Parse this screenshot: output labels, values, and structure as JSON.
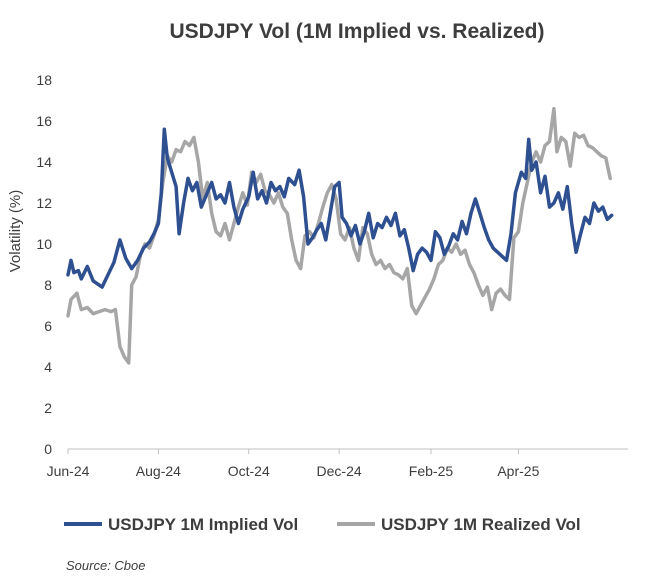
{
  "chart_data": {
    "type": "line",
    "title": "USDJPY Vol (1M Implied vs. Realized)",
    "xlabel": "",
    "ylabel": "Volatility (%)",
    "ylim": [
      0,
      18
    ],
    "yticks": [
      0,
      2,
      4,
      6,
      8,
      10,
      12,
      14,
      16,
      18
    ],
    "xlim": [
      "2024-06-01",
      "2025-06-14"
    ],
    "xticks": [
      {
        "date": "2024-06-01",
        "label": "Jun-24"
      },
      {
        "date": "2024-08-01",
        "label": "Aug-24"
      },
      {
        "date": "2024-10-01",
        "label": "Oct-24"
      },
      {
        "date": "2024-12-01",
        "label": "Dec-24"
      },
      {
        "date": "2025-02-01",
        "label": "Feb-25"
      },
      {
        "date": "2025-04-01",
        "label": "Apr-25"
      }
    ],
    "grid": false,
    "legend": "bottom",
    "source": "Source: Cboe",
    "series": [
      {
        "name": "USDJPY 1M Implied Vol",
        "color": "#2e5090",
        "points": [
          [
            "2024-06-01",
            8.5
          ],
          [
            "2024-06-03",
            9.2
          ],
          [
            "2024-06-05",
            8.6
          ],
          [
            "2024-06-08",
            8.7
          ],
          [
            "2024-06-10",
            8.3
          ],
          [
            "2024-06-14",
            8.9
          ],
          [
            "2024-06-18",
            8.2
          ],
          [
            "2024-06-24",
            7.9
          ],
          [
            "2024-06-28",
            8.5
          ],
          [
            "2024-07-02",
            9.1
          ],
          [
            "2024-07-06",
            10.2
          ],
          [
            "2024-07-10",
            9.3
          ],
          [
            "2024-07-14",
            8.8
          ],
          [
            "2024-07-18",
            9.2
          ],
          [
            "2024-07-22",
            9.8
          ],
          [
            "2024-07-26",
            10.1
          ],
          [
            "2024-07-29",
            10.5
          ],
          [
            "2024-08-01",
            11.0
          ],
          [
            "2024-08-03",
            12.5
          ],
          [
            "2024-08-05",
            15.6
          ],
          [
            "2024-08-07",
            14.2
          ],
          [
            "2024-08-10",
            13.5
          ],
          [
            "2024-08-13",
            12.8
          ],
          [
            "2024-08-15",
            10.5
          ],
          [
            "2024-08-18",
            12.0
          ],
          [
            "2024-08-21",
            13.2
          ],
          [
            "2024-08-24",
            12.6
          ],
          [
            "2024-08-27",
            13.0
          ],
          [
            "2024-08-30",
            11.8
          ],
          [
            "2024-09-03",
            12.5
          ],
          [
            "2024-09-06",
            13.0
          ],
          [
            "2024-09-09",
            12.2
          ],
          [
            "2024-09-12",
            12.4
          ],
          [
            "2024-09-15",
            12.0
          ],
          [
            "2024-09-18",
            13.0
          ],
          [
            "2024-09-21",
            11.8
          ],
          [
            "2024-09-24",
            11.0
          ],
          [
            "2024-09-27",
            11.7
          ],
          [
            "2024-10-01",
            12.3
          ],
          [
            "2024-10-04",
            13.5
          ],
          [
            "2024-10-07",
            12.2
          ],
          [
            "2024-10-10",
            12.6
          ],
          [
            "2024-10-13",
            12.0
          ],
          [
            "2024-10-16",
            13.0
          ],
          [
            "2024-10-19",
            12.6
          ],
          [
            "2024-10-22",
            12.8
          ],
          [
            "2024-10-25",
            12.3
          ],
          [
            "2024-10-28",
            13.2
          ],
          [
            "2024-11-01",
            12.9
          ],
          [
            "2024-11-04",
            13.6
          ],
          [
            "2024-11-07",
            12.3
          ],
          [
            "2024-11-10",
            10.0
          ],
          [
            "2024-11-13",
            10.3
          ],
          [
            "2024-11-16",
            10.7
          ],
          [
            "2024-11-19",
            11.0
          ],
          [
            "2024-11-22",
            10.2
          ],
          [
            "2024-11-25",
            11.5
          ],
          [
            "2024-11-28",
            12.8
          ],
          [
            "2024-12-01",
            13.0
          ],
          [
            "2024-12-03",
            11.3
          ],
          [
            "2024-12-06",
            11.0
          ],
          [
            "2024-12-09",
            10.4
          ],
          [
            "2024-12-12",
            10.9
          ],
          [
            "2024-12-15",
            10.0
          ],
          [
            "2024-12-18",
            10.6
          ],
          [
            "2024-12-21",
            11.5
          ],
          [
            "2024-12-24",
            10.3
          ],
          [
            "2024-12-27",
            11.0
          ],
          [
            "2024-12-30",
            10.8
          ],
          [
            "2025-01-02",
            11.3
          ],
          [
            "2025-01-05",
            10.9
          ],
          [
            "2025-01-08",
            11.5
          ],
          [
            "2025-01-11",
            10.4
          ],
          [
            "2025-01-14",
            10.7
          ],
          [
            "2025-01-17",
            9.8
          ],
          [
            "2025-01-20",
            8.7
          ],
          [
            "2025-01-23",
            9.5
          ],
          [
            "2025-01-26",
            9.8
          ],
          [
            "2025-01-29",
            9.6
          ],
          [
            "2025-02-01",
            9.2
          ],
          [
            "2025-02-04",
            10.6
          ],
          [
            "2025-02-07",
            10.3
          ],
          [
            "2025-02-10",
            9.5
          ],
          [
            "2025-02-13",
            9.9
          ],
          [
            "2025-02-16",
            10.5
          ],
          [
            "2025-02-19",
            10.2
          ],
          [
            "2025-02-22",
            11.1
          ],
          [
            "2025-02-25",
            10.5
          ],
          [
            "2025-02-28",
            11.5
          ],
          [
            "2025-03-03",
            12.2
          ],
          [
            "2025-03-06",
            11.5
          ],
          [
            "2025-03-09",
            10.8
          ],
          [
            "2025-03-12",
            10.2
          ],
          [
            "2025-03-15",
            9.8
          ],
          [
            "2025-03-18",
            9.6
          ],
          [
            "2025-03-21",
            9.4
          ],
          [
            "2025-03-24",
            9.2
          ],
          [
            "2025-03-27",
            10.5
          ],
          [
            "2025-03-30",
            12.5
          ],
          [
            "2025-04-03",
            13.5
          ],
          [
            "2025-04-06",
            13.2
          ],
          [
            "2025-04-08",
            15.1
          ],
          [
            "2025-04-10",
            13.6
          ],
          [
            "2025-04-13",
            14.0
          ],
          [
            "2025-04-16",
            12.5
          ],
          [
            "2025-04-19",
            13.3
          ],
          [
            "2025-04-22",
            11.8
          ],
          [
            "2025-04-25",
            12.0
          ],
          [
            "2025-04-28",
            12.5
          ],
          [
            "2025-05-01",
            11.7
          ],
          [
            "2025-05-04",
            12.8
          ],
          [
            "2025-05-07",
            11.0
          ],
          [
            "2025-05-10",
            9.6
          ],
          [
            "2025-05-13",
            10.5
          ],
          [
            "2025-05-16",
            11.3
          ],
          [
            "2025-05-19",
            11.0
          ],
          [
            "2025-05-22",
            12.0
          ],
          [
            "2025-05-25",
            11.6
          ],
          [
            "2025-05-28",
            11.8
          ],
          [
            "2025-05-31",
            11.2
          ],
          [
            "2025-06-03",
            11.4
          ]
        ]
      },
      {
        "name": "USDJPY 1M Realized Vol",
        "color": "#a6a6a6",
        "points": [
          [
            "2024-06-01",
            6.5
          ],
          [
            "2024-06-03",
            7.3
          ],
          [
            "2024-06-07",
            7.6
          ],
          [
            "2024-06-10",
            6.8
          ],
          [
            "2024-06-14",
            6.9
          ],
          [
            "2024-06-18",
            6.6
          ],
          [
            "2024-06-22",
            6.7
          ],
          [
            "2024-06-26",
            6.8
          ],
          [
            "2024-06-30",
            6.7
          ],
          [
            "2024-07-03",
            6.8
          ],
          [
            "2024-07-06",
            5.0
          ],
          [
            "2024-07-09",
            4.5
          ],
          [
            "2024-07-12",
            4.2
          ],
          [
            "2024-07-14",
            8.0
          ],
          [
            "2024-07-17",
            8.4
          ],
          [
            "2024-07-20",
            9.5
          ],
          [
            "2024-07-23",
            10.0
          ],
          [
            "2024-07-26",
            9.8
          ],
          [
            "2024-07-29",
            10.4
          ],
          [
            "2024-08-01",
            11.2
          ],
          [
            "2024-08-04",
            13.0
          ],
          [
            "2024-08-07",
            14.3
          ],
          [
            "2024-08-10",
            14.0
          ],
          [
            "2024-08-13",
            14.6
          ],
          [
            "2024-08-16",
            14.5
          ],
          [
            "2024-08-19",
            15.0
          ],
          [
            "2024-08-22",
            14.8
          ],
          [
            "2024-08-25",
            15.2
          ],
          [
            "2024-08-28",
            14.0
          ],
          [
            "2024-08-31",
            12.2
          ],
          [
            "2024-09-03",
            13.0
          ],
          [
            "2024-09-06",
            11.5
          ],
          [
            "2024-09-09",
            10.6
          ],
          [
            "2024-09-12",
            10.4
          ],
          [
            "2024-09-15",
            11.0
          ],
          [
            "2024-09-18",
            10.2
          ],
          [
            "2024-09-21",
            11.0
          ],
          [
            "2024-09-24",
            11.8
          ],
          [
            "2024-09-27",
            12.5
          ],
          [
            "2024-09-30",
            11.9
          ],
          [
            "2024-10-03",
            13.5
          ],
          [
            "2024-10-06",
            13.0
          ],
          [
            "2024-10-09",
            13.4
          ],
          [
            "2024-10-12",
            12.6
          ],
          [
            "2024-10-15",
            12.4
          ],
          [
            "2024-10-18",
            12.0
          ],
          [
            "2024-10-21",
            12.5
          ],
          [
            "2024-10-24",
            11.8
          ],
          [
            "2024-10-27",
            11.5
          ],
          [
            "2024-10-30",
            10.2
          ],
          [
            "2024-11-02",
            9.2
          ],
          [
            "2024-11-05",
            8.8
          ],
          [
            "2024-11-08",
            10.4
          ],
          [
            "2024-11-11",
            10.6
          ],
          [
            "2024-11-14",
            10.3
          ],
          [
            "2024-11-17",
            11.0
          ],
          [
            "2024-11-20",
            11.8
          ],
          [
            "2024-11-23",
            12.5
          ],
          [
            "2024-11-26",
            12.9
          ],
          [
            "2024-11-29",
            12.2
          ],
          [
            "2024-12-02",
            10.5
          ],
          [
            "2024-12-05",
            10.2
          ],
          [
            "2024-12-08",
            10.8
          ],
          [
            "2024-12-11",
            9.8
          ],
          [
            "2024-12-14",
            9.2
          ],
          [
            "2024-12-17",
            10.8
          ],
          [
            "2024-12-20",
            10.5
          ],
          [
            "2024-12-23",
            9.5
          ],
          [
            "2024-12-26",
            9.0
          ],
          [
            "2024-12-29",
            9.2
          ],
          [
            "2025-01-01",
            8.8
          ],
          [
            "2025-01-04",
            9.0
          ],
          [
            "2025-01-07",
            8.6
          ],
          [
            "2025-01-10",
            8.5
          ],
          [
            "2025-01-13",
            8.3
          ],
          [
            "2025-01-16",
            8.8
          ],
          [
            "2025-01-19",
            7.0
          ],
          [
            "2025-01-22",
            6.6
          ],
          [
            "2025-01-25",
            7.0
          ],
          [
            "2025-01-28",
            7.4
          ],
          [
            "2025-01-31",
            7.8
          ],
          [
            "2025-02-03",
            8.3
          ],
          [
            "2025-02-06",
            9.0
          ],
          [
            "2025-02-09",
            9.2
          ],
          [
            "2025-02-12",
            9.8
          ],
          [
            "2025-02-15",
            9.6
          ],
          [
            "2025-02-18",
            10.0
          ],
          [
            "2025-02-21",
            9.5
          ],
          [
            "2025-02-24",
            9.7
          ],
          [
            "2025-02-27",
            9.0
          ],
          [
            "2025-03-02",
            8.6
          ],
          [
            "2025-03-05",
            8.0
          ],
          [
            "2025-03-08",
            7.5
          ],
          [
            "2025-03-11",
            7.9
          ],
          [
            "2025-03-14",
            6.8
          ],
          [
            "2025-03-17",
            7.6
          ],
          [
            "2025-03-20",
            7.8
          ],
          [
            "2025-03-23",
            7.5
          ],
          [
            "2025-03-26",
            7.3
          ],
          [
            "2025-03-29",
            10.3
          ],
          [
            "2025-04-01",
            10.6
          ],
          [
            "2025-04-04",
            12.0
          ],
          [
            "2025-04-07",
            13.0
          ],
          [
            "2025-04-10",
            14.0
          ],
          [
            "2025-04-13",
            14.5
          ],
          [
            "2025-04-16",
            14.0
          ],
          [
            "2025-04-19",
            14.8
          ],
          [
            "2025-04-22",
            15.0
          ],
          [
            "2025-04-25",
            16.6
          ],
          [
            "2025-04-27",
            14.5
          ],
          [
            "2025-04-30",
            15.2
          ],
          [
            "2025-05-03",
            15.0
          ],
          [
            "2025-05-06",
            13.8
          ],
          [
            "2025-05-09",
            15.4
          ],
          [
            "2025-05-12",
            15.2
          ],
          [
            "2025-05-15",
            15.3
          ],
          [
            "2025-05-18",
            14.8
          ],
          [
            "2025-05-21",
            14.7
          ],
          [
            "2025-05-24",
            14.5
          ],
          [
            "2025-05-27",
            14.3
          ],
          [
            "2025-05-30",
            14.2
          ],
          [
            "2025-06-02",
            13.2
          ]
        ]
      }
    ]
  }
}
